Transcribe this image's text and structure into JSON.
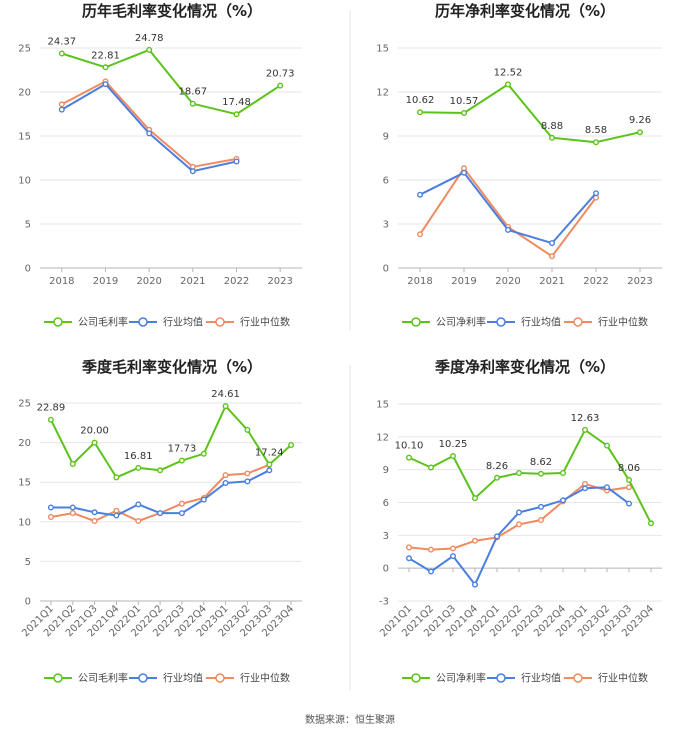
{
  "colors": {
    "company": "#5cc31a",
    "avg": "#4a7fe0",
    "median": "#f08a60",
    "grid": "#e6e6e6",
    "axis": "#b5b5b5",
    "divider": "#e6e6e6"
  },
  "source": "数据来源：恒生聚源",
  "chart_data": [
    {
      "type": "line",
      "title": "历年毛利率变化情况（%）",
      "categories": [
        "2018",
        "2019",
        "2020",
        "2021",
        "2022",
        "2023"
      ],
      "yticks": [
        "0",
        "5",
        "10",
        "15",
        "20",
        "25"
      ],
      "ylim": [
        0,
        25
      ],
      "series": [
        {
          "name": "公司毛利率",
          "key": "company",
          "values": [
            24.37,
            22.81,
            24.78,
            18.67,
            17.48,
            20.73
          ],
          "labels": [
            "24.37",
            "22.81",
            "24.78",
            "18.67",
            "17.48",
            "20.73"
          ]
        },
        {
          "name": "行业均值",
          "key": "avg",
          "values": [
            18.0,
            20.9,
            15.3,
            11.0,
            12.1,
            null
          ]
        },
        {
          "name": "行业中位数",
          "key": "median",
          "values": [
            18.6,
            21.2,
            15.7,
            11.5,
            12.4,
            null
          ]
        }
      ]
    },
    {
      "type": "line",
      "title": "历年净利率变化情况（%）",
      "categories": [
        "2018",
        "2019",
        "2020",
        "2021",
        "2022",
        "2023"
      ],
      "yticks": [
        "0",
        "3",
        "6",
        "9",
        "12",
        "15"
      ],
      "ylim": [
        0,
        15
      ],
      "series": [
        {
          "name": "公司净利率",
          "key": "company",
          "values": [
            10.62,
            10.57,
            12.52,
            8.88,
            8.58,
            9.26
          ],
          "labels": [
            "10.62",
            "10.57",
            "12.52",
            "8.88",
            "8.58",
            "9.26"
          ]
        },
        {
          "name": "行业均值",
          "key": "avg",
          "values": [
            5.0,
            6.5,
            2.6,
            1.7,
            5.1,
            null
          ]
        },
        {
          "name": "行业中位数",
          "key": "median",
          "values": [
            2.3,
            6.8,
            2.8,
            0.8,
            4.8,
            null
          ]
        }
      ]
    },
    {
      "type": "line",
      "title": "季度毛利率变化情况（%）",
      "categories": [
        "2021Q1",
        "2021Q2",
        "2021Q3",
        "2021Q4",
        "2022Q1",
        "2022Q2",
        "2022Q3",
        "2022Q4",
        "2023Q1",
        "2023Q2",
        "2023Q3",
        "2023Q4"
      ],
      "yticks": [
        "0",
        "5",
        "10",
        "15",
        "20",
        "25"
      ],
      "ylim": [
        0,
        25
      ],
      "series": [
        {
          "name": "公司毛利率",
          "key": "company",
          "values": [
            22.89,
            17.3,
            20.0,
            15.6,
            16.81,
            16.5,
            17.73,
            18.6,
            24.61,
            21.6,
            17.24,
            19.7
          ],
          "labels": [
            "22.89",
            "",
            "20.00",
            "",
            "16.81",
            "",
            "17.73",
            "",
            "24.61",
            "",
            "17.24",
            ""
          ]
        },
        {
          "name": "行业均值",
          "key": "avg",
          "values": [
            11.8,
            11.8,
            11.2,
            10.8,
            12.2,
            11.1,
            11.1,
            12.8,
            14.9,
            15.1,
            16.5,
            null
          ]
        },
        {
          "name": "行业中位数",
          "key": "median",
          "values": [
            10.6,
            11.1,
            10.1,
            11.4,
            10.1,
            11.1,
            12.3,
            13.0,
            15.9,
            16.1,
            17.2,
            null
          ]
        }
      ]
    },
    {
      "type": "line",
      "title": "季度净利率变化情况（%）",
      "categories": [
        "2021Q1",
        "2021Q2",
        "2021Q3",
        "2021Q4",
        "2022Q1",
        "2022Q2",
        "2022Q3",
        "2022Q4",
        "2023Q1",
        "2023Q2",
        "2023Q3",
        "2023Q4"
      ],
      "yticks": [
        "-3",
        "0",
        "3",
        "6",
        "9",
        "12",
        "15"
      ],
      "ylim": [
        -3,
        15
      ],
      "series": [
        {
          "name": "公司净利率",
          "key": "company",
          "values": [
            10.1,
            9.2,
            10.25,
            6.4,
            8.26,
            8.7,
            8.62,
            8.7,
            12.63,
            11.2,
            8.06,
            4.1
          ],
          "labels": [
            "10.10",
            "",
            "10.25",
            "",
            "8.26",
            "",
            "8.62",
            "",
            "12.63",
            "",
            "8.06",
            ""
          ]
        },
        {
          "name": "行业均值",
          "key": "avg",
          "values": [
            0.9,
            -0.3,
            1.1,
            -1.5,
            2.9,
            5.1,
            5.6,
            6.2,
            7.3,
            7.4,
            5.9,
            null
          ]
        },
        {
          "name": "行业中位数",
          "key": "median",
          "values": [
            1.9,
            1.7,
            1.8,
            2.5,
            2.8,
            4.0,
            4.4,
            6.1,
            7.7,
            7.1,
            7.4,
            null
          ]
        }
      ]
    }
  ]
}
